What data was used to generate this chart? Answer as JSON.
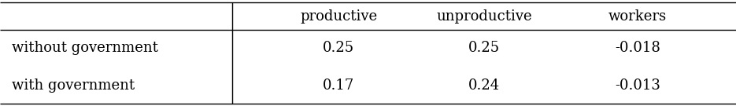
{
  "col_headers": [
    "productive",
    "unproductive",
    "workers"
  ],
  "row_headers": [
    "without government",
    "with government"
  ],
  "cell_values": [
    [
      "0.25",
      "0.25",
      "-0.018"
    ],
    [
      "0.17",
      "0.24",
      "-0.013"
    ]
  ],
  "font_size": 13,
  "bg_color": "#ffffff",
  "text_color": "#000000",
  "figwidth": 9.35,
  "figheight": 1.35,
  "dpi": 100
}
